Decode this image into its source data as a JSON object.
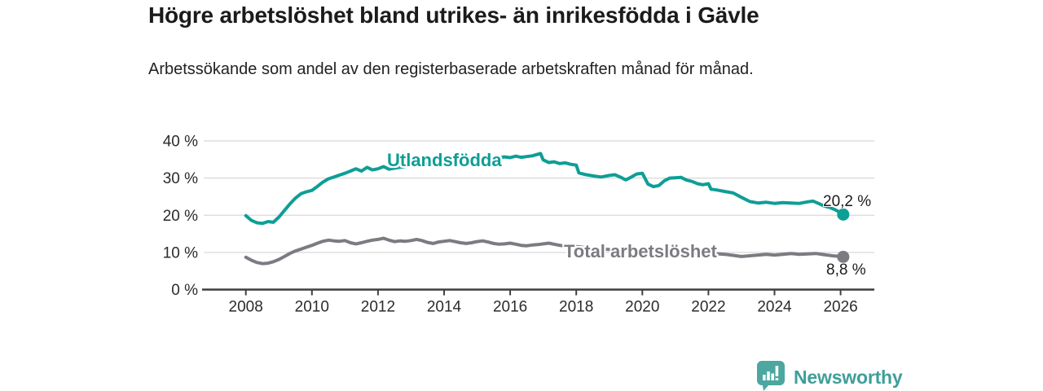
{
  "header": {
    "title": "Högre arbetslöshet bland utrikes- än inrikesfödda i Gävle",
    "subtitle": "Arbetssökande som andel av den registerbaserade arbetskraften månad för månad."
  },
  "colors": {
    "accent_teal": "#0E9E96",
    "line_gray": "#7B7B81",
    "axis": "#3F3F3F",
    "grid": "#D8D8D8",
    "tick_text": "#2B2B2B",
    "logo_bubble_teal": "#4BA79F",
    "logo_text_teal": "#3F9E99"
  },
  "chart_data": {
    "type": "line",
    "title": "Högre arbetslöshet bland utrikes- än inrikesfödda i Gävle",
    "xlabel": "",
    "ylabel": "%",
    "ylim": [
      0,
      40
    ],
    "xlim": [
      2007.85,
      2027.0
    ],
    "grid": "horizontal-only",
    "legend_position": "inline-labels-on-lines",
    "x_ticks": [
      "2008",
      "2010",
      "2012",
      "2014",
      "2016",
      "2018",
      "2020",
      "2022",
      "2024",
      "2026"
    ],
    "y_ticks": [
      {
        "label": "40 %",
        "value": 40
      },
      {
        "label": "30 %",
        "value": 30
      },
      {
        "label": "20 %",
        "value": 20
      },
      {
        "label": "10 %",
        "value": 10
      },
      {
        "label": "0 %",
        "value": 0
      }
    ],
    "series": [
      {
        "name": "Utlandsfödda",
        "color": "#0E9E96",
        "end_label": "20,2 %",
        "end_value": 20.2,
        "x": [
          2008.0,
          2008.17,
          2008.33,
          2008.5,
          2008.67,
          2008.83,
          2009.0,
          2009.17,
          2009.33,
          2009.5,
          2009.67,
          2009.83,
          2010.0,
          2010.17,
          2010.33,
          2010.5,
          2010.67,
          2010.83,
          2011.0,
          2011.17,
          2011.33,
          2011.5,
          2011.67,
          2011.83,
          2012.0,
          2012.17,
          2012.33,
          2012.58,
          2013.0,
          2013.5,
          2014.0,
          2014.5,
          2015.0,
          2015.5,
          2015.83,
          2016.0,
          2016.17,
          2016.33,
          2016.5,
          2016.67,
          2016.83,
          2016.92,
          2017.0,
          2017.17,
          2017.33,
          2017.5,
          2017.67,
          2017.83,
          2018.0,
          2018.08,
          2018.25,
          2018.5,
          2018.75,
          2019.0,
          2019.17,
          2019.33,
          2019.5,
          2019.67,
          2019.83,
          2020.0,
          2020.17,
          2020.33,
          2020.5,
          2020.67,
          2020.83,
          2021.0,
          2021.17,
          2021.33,
          2021.5,
          2021.67,
          2021.83,
          2022.0,
          2022.08,
          2022.25,
          2022.5,
          2022.75,
          2023.0,
          2023.25,
          2023.5,
          2023.75,
          2024.0,
          2024.25,
          2024.5,
          2024.75,
          2025.0,
          2025.17,
          2025.33,
          2025.5,
          2025.67,
          2025.83,
          2026.0,
          2026.08
        ],
        "values": [
          19.9,
          18.6,
          18.0,
          17.8,
          18.3,
          18.1,
          19.5,
          21.3,
          23.0,
          24.6,
          25.8,
          26.3,
          26.7,
          27.8,
          28.9,
          29.8,
          30.3,
          30.8,
          31.3,
          31.9,
          32.5,
          31.9,
          32.9,
          32.2,
          32.5,
          33.1,
          32.4,
          32.8,
          33.4,
          33.9,
          34.3,
          34.7,
          35.0,
          35.3,
          35.7,
          35.5,
          35.9,
          35.6,
          35.8,
          36.0,
          36.4,
          36.6,
          34.9,
          34.2,
          34.4,
          33.9,
          34.1,
          33.7,
          33.5,
          31.4,
          31.0,
          30.6,
          30.3,
          30.7,
          30.9,
          30.3,
          29.5,
          30.3,
          31.1,
          31.3,
          28.4,
          27.7,
          28.0,
          29.3,
          30.0,
          30.1,
          30.2,
          29.5,
          29.1,
          28.5,
          28.2,
          28.5,
          27.0,
          26.8,
          26.4,
          26.0,
          24.8,
          23.7,
          23.3,
          23.5,
          23.2,
          23.4,
          23.3,
          23.2,
          23.6,
          23.8,
          23.2,
          22.5,
          22.1,
          21.5,
          20.7,
          20.2
        ]
      },
      {
        "name": "Total arbetslöshet",
        "color": "#7B7B81",
        "end_label": "8,8 %",
        "end_value": 8.8,
        "x": [
          2008.0,
          2008.17,
          2008.33,
          2008.5,
          2008.67,
          2008.83,
          2009.0,
          2009.17,
          2009.33,
          2009.5,
          2009.67,
          2009.83,
          2010.0,
          2010.17,
          2010.33,
          2010.5,
          2010.67,
          2010.83,
          2011.0,
          2011.17,
          2011.33,
          2011.5,
          2011.67,
          2011.83,
          2012.0,
          2012.17,
          2012.33,
          2012.5,
          2012.67,
          2012.83,
          2013.0,
          2013.17,
          2013.33,
          2013.5,
          2013.67,
          2013.83,
          2014.0,
          2014.17,
          2014.33,
          2014.5,
          2014.67,
          2014.83,
          2015.0,
          2015.17,
          2015.33,
          2015.5,
          2015.67,
          2015.83,
          2016.0,
          2016.17,
          2016.33,
          2016.5,
          2016.67,
          2016.83,
          2017.0,
          2017.17,
          2017.33,
          2017.5,
          2017.67,
          2017.83,
          2018.0,
          2018.25,
          2018.5,
          2018.75,
          2019.0,
          2019.5,
          2020.0,
          2020.5,
          2021.0,
          2021.5,
          2022.0,
          2022.5,
          2022.75,
          2023.0,
          2023.25,
          2023.5,
          2023.75,
          2024.0,
          2024.25,
          2024.5,
          2024.75,
          2025.0,
          2025.25,
          2025.5,
          2025.75,
          2026.0,
          2026.08
        ],
        "values": [
          8.7,
          7.9,
          7.3,
          7.0,
          7.1,
          7.5,
          8.1,
          8.9,
          9.7,
          10.4,
          10.9,
          11.4,
          11.9,
          12.5,
          13.0,
          13.3,
          13.1,
          13.0,
          13.2,
          12.6,
          12.3,
          12.6,
          13.0,
          13.3,
          13.5,
          13.8,
          13.3,
          12.9,
          13.1,
          13.0,
          13.2,
          13.5,
          13.2,
          12.7,
          12.4,
          12.8,
          13.0,
          13.2,
          12.9,
          12.6,
          12.4,
          12.6,
          12.9,
          13.1,
          12.8,
          12.4,
          12.2,
          12.3,
          12.5,
          12.2,
          11.9,
          11.8,
          12.0,
          12.1,
          12.3,
          12.5,
          12.2,
          11.9,
          11.7,
          11.5,
          11.6,
          11.3,
          11.1,
          10.9,
          10.8,
          10.6,
          10.4,
          10.2,
          10.0,
          9.9,
          9.8,
          9.5,
          9.2,
          8.9,
          9.1,
          9.3,
          9.5,
          9.3,
          9.5,
          9.7,
          9.5,
          9.6,
          9.7,
          9.4,
          9.1,
          8.9,
          8.8
        ]
      }
    ]
  },
  "branding": {
    "logo_text": "Newsworthy",
    "logo_icon": "bar-chart-speech-bubble"
  }
}
